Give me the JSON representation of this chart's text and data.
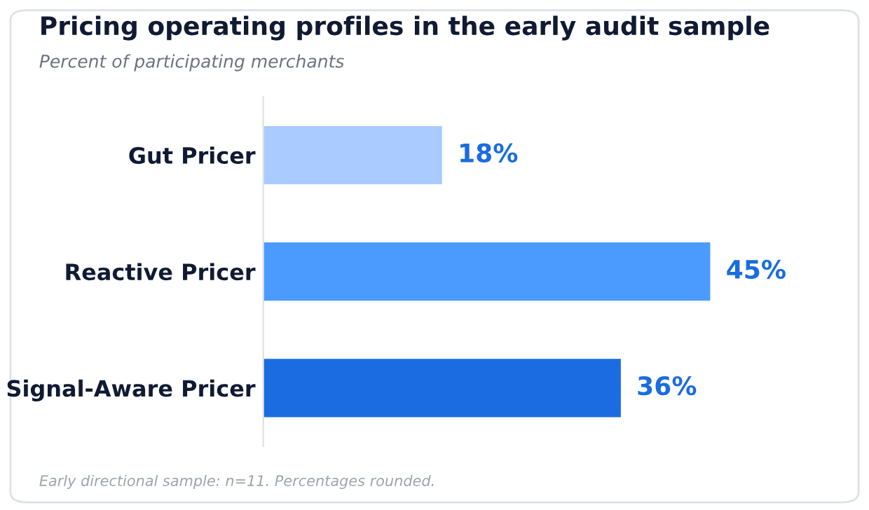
{
  "chart_data": {
    "type": "bar",
    "orientation": "horizontal",
    "title": "Pricing operating profiles in the early audit sample",
    "subtitle": "Percent of participating merchants",
    "categories": [
      "Gut Pricer",
      "Reactive Pricer",
      "Signal-Aware Pricer"
    ],
    "values": [
      18,
      45,
      36
    ],
    "colors": [
      "#a9cbff",
      "#4b9bff",
      "#1a6ce0"
    ],
    "value_labels": [
      "18%",
      "45%",
      "36%"
    ],
    "tick_labels": "y",
    "grid": false,
    "legend": false,
    "annotations": [
      "Early directional sample: n=11. Percentages rounded."
    ]
  }
}
